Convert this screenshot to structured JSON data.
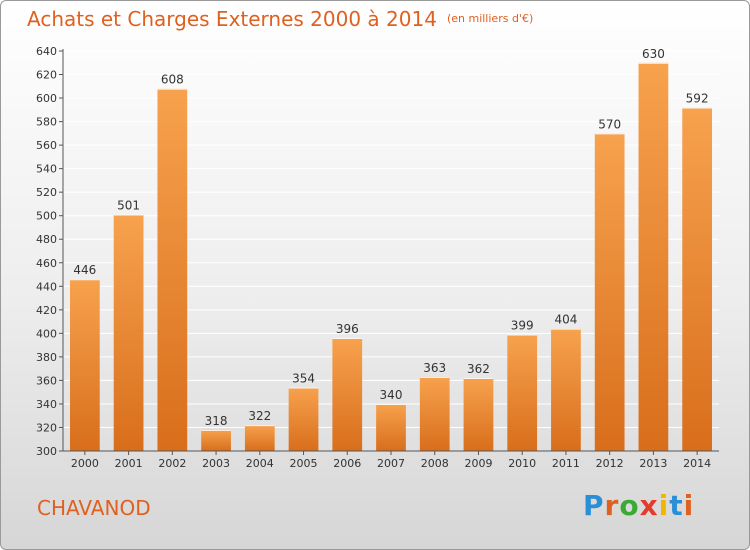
{
  "chart_data": {
    "type": "bar",
    "title": "Achats et Charges Externes 2000 à 2014",
    "subtitle": "(en milliers d'€)",
    "categories": [
      "2000",
      "2001",
      "2002",
      "2003",
      "2004",
      "2005",
      "2006",
      "2007",
      "2008",
      "2009",
      "2010",
      "2011",
      "2012",
      "2013",
      "2014"
    ],
    "values": [
      446,
      501,
      608,
      318,
      322,
      354,
      396,
      340,
      363,
      362,
      399,
      404,
      570,
      630,
      592
    ],
    "ylim": [
      300,
      640
    ],
    "yticks": [
      300,
      320,
      340,
      360,
      380,
      400,
      420,
      440,
      460,
      480,
      500,
      520,
      540,
      560,
      580,
      600,
      620,
      640
    ],
    "grid": true,
    "data_labels": true
  },
  "commune": "CHAVANOD",
  "logo": {
    "letters": [
      "P",
      "r",
      "o",
      "x",
      "i",
      "t",
      "i"
    ],
    "colors": [
      "#2a8fd6",
      "#e0601f",
      "#3aaa35",
      "#e33b2c",
      "#f2b600",
      "#2a8fd6",
      "#e0601f"
    ]
  },
  "colors": {
    "accent": "#e0601f",
    "bar_top": "#f7a24e",
    "bar_bottom": "#d86e1c",
    "grid": "#ffffff",
    "axis": "#555555"
  }
}
